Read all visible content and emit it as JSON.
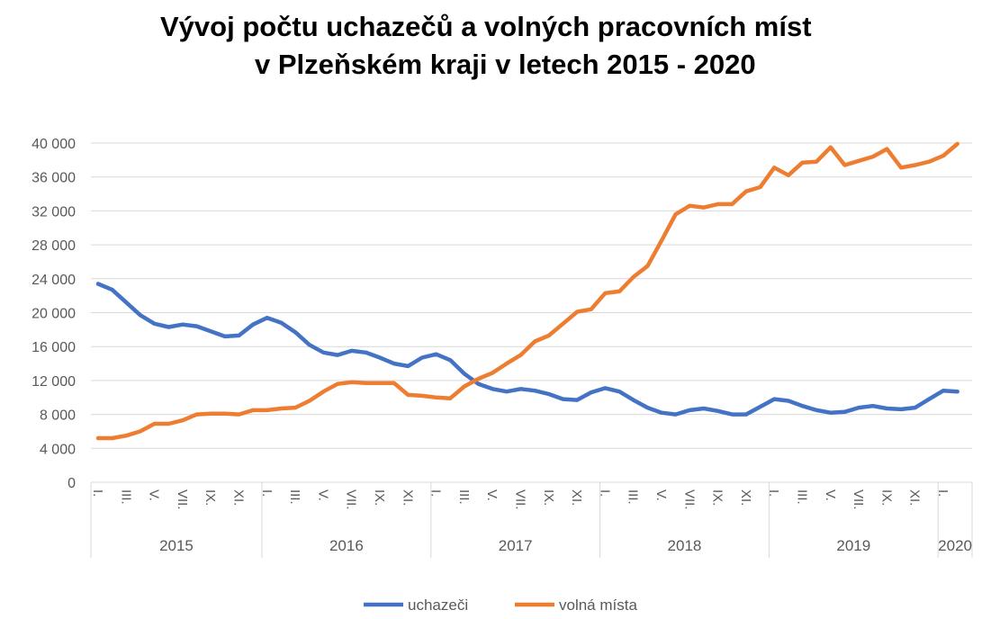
{
  "chart_data": {
    "type": "line",
    "title": "Vývoj počtu uchazečů a volných pracovních míst v Plzeňském kraji v letech 2015 - 2020",
    "title_lines": [
      "Vývoj počtu uchazečů a volných pracovních míst",
      "v Plzeňském kraji v letech 2015 - 2020"
    ],
    "ylim": [
      0,
      40000
    ],
    "y_ticks": [
      "0",
      "4 000",
      "8 000",
      "12 000",
      "16 000",
      "20 000",
      "24 000",
      "28 000",
      "32 000",
      "36 000",
      "40 000"
    ],
    "month_labels": [
      "I.",
      "III.",
      "V.",
      "VII.",
      "IX.",
      "XI."
    ],
    "years": [
      {
        "label": "2015",
        "months": 12
      },
      {
        "label": "2016",
        "months": 12
      },
      {
        "label": "2017",
        "months": 12
      },
      {
        "label": "2018",
        "months": 12
      },
      {
        "label": "2019",
        "months": 12
      },
      {
        "label": "2020",
        "months": 2
      }
    ],
    "grid": true,
    "legend_position": "bottom",
    "series": [
      {
        "name": "uchazeči",
        "color": "#4472C4",
        "values": [
          23400,
          22700,
          21200,
          19700,
          18700,
          18300,
          18600,
          18400,
          17800,
          17200,
          17300,
          18600,
          19400,
          18800,
          17700,
          16200,
          15300,
          15000,
          15500,
          15300,
          14700,
          14000,
          13700,
          14700,
          15100,
          14400,
          12800,
          11600,
          11000,
          10700,
          11000,
          10800,
          10400,
          9800,
          9700,
          10600,
          11100,
          10700,
          9700,
          8800,
          8200,
          8000,
          8500,
          8700,
          8400,
          8000,
          8000,
          8900,
          9800,
          9600,
          9000,
          8500,
          8200,
          8300,
          8800,
          9000,
          8700,
          8600,
          8800,
          9800,
          10800,
          10700
        ]
      },
      {
        "name": "volná místa",
        "color": "#ED7D31",
        "values": [
          5200,
          5200,
          5500,
          6000,
          6900,
          6900,
          7300,
          8000,
          8100,
          8100,
          8000,
          8500,
          8500,
          8700,
          8800,
          9600,
          10700,
          11600,
          11800,
          11700,
          11700,
          11700,
          10300,
          10200,
          10000,
          9900,
          11300,
          12200,
          12900,
          14000,
          15000,
          16600,
          17300,
          18700,
          20100,
          20400,
          22300,
          22500,
          24200,
          25500,
          28500,
          31600,
          32600,
          32400,
          32800,
          32800,
          34300,
          34800,
          37100,
          36200,
          37700,
          37800,
          39500,
          37400,
          37900,
          38400,
          39300,
          37100,
          37400,
          37800,
          38500,
          39900
        ]
      }
    ]
  }
}
